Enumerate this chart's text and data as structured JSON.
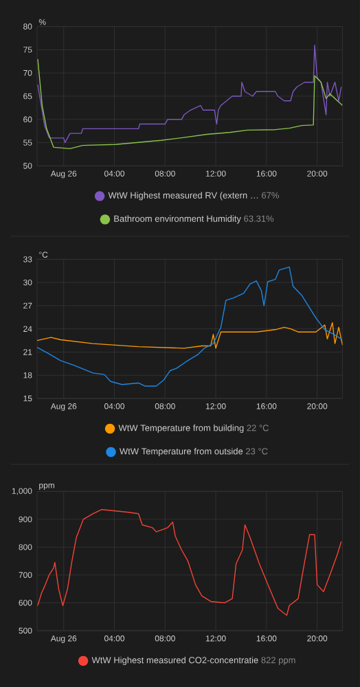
{
  "chart_data": [
    {
      "type": "line",
      "ylabel": "%",
      "xlim": [
        -2.1,
        22
      ],
      "ylim": [
        50,
        80
      ],
      "grid": true,
      "legend": "bottom",
      "xticks": [
        {
          "value": 0,
          "label": "Aug 26"
        },
        {
          "value": 4,
          "label": "04:00"
        },
        {
          "value": 8,
          "label": "08:00"
        },
        {
          "value": 12,
          "label": "12:00"
        },
        {
          "value": 16,
          "label": "16:00"
        },
        {
          "value": 20,
          "label": "20:00"
        }
      ],
      "yticks": [
        50,
        55,
        60,
        65,
        70,
        75,
        80
      ],
      "series": [
        {
          "name": "WtW Highest measured RV (extern …",
          "color": "#7e57c2",
          "x": [
            -2.05,
            -1.5,
            -1.15,
            -1.0,
            0.0,
            0.1,
            0.3,
            0.5,
            1.4,
            1.5,
            5.9,
            6.0,
            8.0,
            8.2,
            9.3,
            9.5,
            10.0,
            10.8,
            11.0,
            11.9,
            12.07,
            12.2,
            12.4,
            13.3,
            14.0,
            14.05,
            14.3,
            14.9,
            15.2,
            16.7,
            16.9,
            17.4,
            17.9,
            18.1,
            18.4,
            19.0,
            19.7,
            19.8,
            20.0,
            20.3,
            20.7,
            20.8,
            21.0,
            21.4,
            21.7,
            21.9
          ],
          "values": [
            67.5,
            58.6,
            56.1,
            56,
            56,
            55,
            56,
            57,
            57,
            58,
            58,
            59,
            59,
            60,
            60,
            61,
            62,
            63,
            62,
            62,
            59,
            62,
            63,
            65,
            65,
            68,
            66,
            65,
            66,
            66,
            65,
            64,
            64,
            66,
            67,
            68,
            68,
            76,
            69,
            68,
            61,
            68,
            65,
            68,
            64,
            67
          ]
        },
        {
          "name": "Bathroom environment Humidity",
          "color": "#8bc34a",
          "x": [
            -2.05,
            -1.7,
            -1.35,
            -0.8,
            0.5,
            1.5,
            4.1,
            7.7,
            9.5,
            11.3,
            13.1,
            14.5,
            16.7,
            17.8,
            18.8,
            19.7,
            19.8,
            20.3,
            20.7,
            21.0,
            22.0
          ],
          "values": [
            73,
            63,
            58,
            54,
            53.7,
            54.4,
            54.6,
            55.5,
            56.1,
            56.8,
            57.2,
            57.7,
            57.8,
            58.1,
            58.7,
            58.8,
            69.4,
            68,
            64.5,
            65.5,
            63
          ]
        }
      ],
      "annotations": [
        "67%",
        "63.31%"
      ]
    },
    {
      "type": "line",
      "ylabel": "°C",
      "xlim": [
        -2.1,
        22
      ],
      "ylim": [
        15,
        33
      ],
      "grid": true,
      "legend": "bottom",
      "xticks": [
        {
          "value": 0,
          "label": "Aug 26"
        },
        {
          "value": 4,
          "label": "04:00"
        },
        {
          "value": 8,
          "label": "08:00"
        },
        {
          "value": 12,
          "label": "12:00"
        },
        {
          "value": 16,
          "label": "16:00"
        },
        {
          "value": 20,
          "label": "20:00"
        }
      ],
      "yticks": [
        15,
        18,
        21,
        24,
        27,
        30,
        33
      ],
      "series": [
        {
          "name": "WtW Temperature from building",
          "color": "#ff9800",
          "x": [
            -2.1,
            -1.0,
            -0.25,
            2.3,
            5.9,
            9.5,
            10.9,
            11.6,
            11.8,
            12.0,
            12.4,
            15.2,
            16.7,
            17.4,
            17.9,
            18.5,
            19.9,
            20.6,
            20.8,
            21.2,
            21.4,
            21.7,
            22.0
          ],
          "values": [
            22.5,
            22.9,
            22.6,
            22.1,
            21.7,
            21.5,
            21.8,
            21.8,
            23.3,
            21.5,
            23.6,
            23.6,
            23.9,
            24.2,
            24.0,
            23.6,
            23.6,
            24.5,
            22.7,
            24.8,
            22.1,
            24.2,
            21.9
          ]
        },
        {
          "name": "WtW Temperature from outside",
          "color": "#1e88e5",
          "x": [
            -2.1,
            -1.3,
            -0.25,
            0.8,
            2.3,
            3.2,
            3.7,
            4.6,
            5.9,
            6.4,
            7.3,
            7.9,
            8.4,
            8.9,
            9.7,
            10.6,
            11.1,
            11.8,
            12.4,
            12.8,
            13.4,
            14.2,
            14.7,
            15.2,
            15.6,
            15.8,
            16.1,
            16.7,
            17.0,
            17.8,
            18.1,
            18.8,
            19.9,
            20.6,
            21.3,
            21.9
          ],
          "values": [
            21.6,
            20.9,
            19.9,
            19.3,
            18.3,
            18.1,
            17.2,
            16.8,
            17.0,
            16.6,
            16.6,
            17.4,
            18.6,
            18.9,
            19.8,
            20.7,
            21.5,
            22.1,
            24.2,
            27.7,
            28.0,
            28.6,
            29.8,
            30.2,
            28.9,
            27.0,
            30.1,
            30.4,
            31.6,
            32.0,
            29.5,
            28.3,
            25.4,
            23.9,
            23.3,
            22.7
          ]
        }
      ],
      "annotations": [
        "22 °C",
        "23 °C"
      ]
    },
    {
      "type": "line",
      "ylabel": "ppm",
      "xlim": [
        -2.1,
        22
      ],
      "ylim": [
        500,
        1000
      ],
      "grid": true,
      "legend": "bottom",
      "xticks": [
        {
          "value": 0,
          "label": "Aug 26"
        },
        {
          "value": 4,
          "label": "04:00"
        },
        {
          "value": 8,
          "label": "08:00"
        },
        {
          "value": 12,
          "label": "12:00"
        },
        {
          "value": 16,
          "label": "16:00"
        },
        {
          "value": 20,
          "label": "20:00"
        }
      ],
      "yticks": [
        500,
        600,
        700,
        800,
        900,
        {
          "value": 1000,
          "label": "1,000"
        }
      ],
      "series": [
        {
          "name": "WtW Highest measured CO2-concentratie",
          "color": "#f44336",
          "x": [
            -2.05,
            -1.75,
            -1.5,
            -1.15,
            -0.8,
            -0.7,
            -0.4,
            -0.07,
            0.3,
            0.65,
            1.0,
            1.55,
            2.3,
            3.0,
            4.1,
            5.15,
            5.9,
            6.2,
            7.0,
            7.3,
            8.2,
            8.6,
            8.8,
            9.3,
            9.8,
            10.4,
            10.9,
            11.6,
            12.7,
            13.3,
            13.6,
            14.1,
            14.3,
            14.7,
            15.4,
            15.8,
            16.3,
            16.9,
            17.6,
            17.8,
            18.5,
            19.0,
            19.4,
            19.8,
            20.0,
            20.5,
            21.0,
            21.6,
            21.9
          ],
          "values": [
            590,
            635,
            660,
            700,
            725,
            745,
            650,
            590,
            650,
            750,
            835,
            900,
            920,
            935,
            930,
            925,
            920,
            880,
            870,
            855,
            870,
            890,
            840,
            790,
            750,
            665,
            625,
            605,
            600,
            615,
            740,
            790,
            880,
            835,
            745,
            700,
            645,
            580,
            555,
            590,
            615,
            745,
            845,
            845,
            665,
            640,
            700,
            775,
            820
          ]
        }
      ],
      "annotations": [
        "822 ppm"
      ]
    }
  ]
}
